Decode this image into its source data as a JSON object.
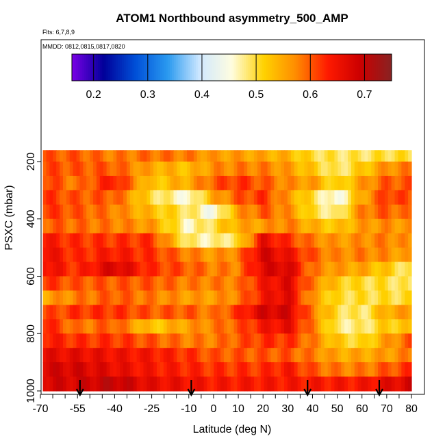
{
  "chart_data": {
    "type": "heatmap",
    "title": "ATOM1 Northbound asymmetry_500_AMP",
    "flights_note": "Flts: 6,7,8,9",
    "dates_note": "MMDD: 0812,0815,0817,0820",
    "xlabel": "Latitude (deg N)",
    "ylabel": "PSXC (mbar)",
    "xlim": [
      -70,
      80
    ],
    "ylim": [
      1000,
      140
    ],
    "x_ticks": [
      -70,
      -55,
      -40,
      -25,
      -10,
      0,
      10,
      20,
      30,
      40,
      50,
      60,
      70,
      80
    ],
    "y_ticks": [
      200,
      400,
      600,
      800,
      1000
    ],
    "colorbar": {
      "range": [
        0.16,
        0.75
      ],
      "ticks": [
        0.2,
        0.3,
        0.4,
        0.5,
        0.6,
        0.7
      ],
      "colors": [
        "#7a00e6",
        "#000099",
        "#0050d8",
        "#2a9af0",
        "#cfe8ff",
        "#fffde0",
        "#ffd200",
        "#ff8c00",
        "#ff1a00",
        "#cc0000",
        "#882222"
      ]
    },
    "data_extent": {
      "lat_min": -69,
      "lat_max": 80,
      "p_min": 160,
      "p_max": 1000
    },
    "flight_arrows_lat": [
      -54,
      -9,
      38,
      67
    ],
    "pressure_levels": [
      175,
      225,
      275,
      325,
      375,
      425,
      475,
      525,
      575,
      625,
      675,
      725,
      775,
      825,
      875,
      925,
      975
    ],
    "lat_nodes": [
      -70,
      -55,
      -40,
      -25,
      -10,
      0,
      10,
      20,
      30,
      40,
      50,
      60,
      70,
      80
    ],
    "values": [
      [
        0.6,
        0.6,
        0.58,
        0.59,
        0.58,
        0.56,
        0.56,
        0.55,
        0.54,
        0.5,
        0.49,
        0.49,
        0.5,
        0.5
      ],
      [
        0.61,
        0.6,
        0.6,
        0.55,
        0.53,
        0.57,
        0.58,
        0.58,
        0.56,
        0.52,
        0.48,
        0.52,
        0.57,
        0.58
      ],
      [
        0.62,
        0.58,
        0.64,
        0.52,
        0.55,
        0.6,
        0.62,
        0.6,
        0.57,
        0.56,
        0.5,
        0.56,
        0.6,
        0.6
      ],
      [
        0.62,
        0.6,
        0.6,
        0.5,
        0.45,
        0.55,
        0.6,
        0.62,
        0.56,
        0.5,
        0.44,
        0.55,
        0.62,
        0.6
      ],
      [
        0.62,
        0.6,
        0.58,
        0.53,
        0.49,
        0.44,
        0.56,
        0.6,
        0.57,
        0.5,
        0.47,
        0.58,
        0.6,
        0.58
      ],
      [
        0.6,
        0.59,
        0.58,
        0.56,
        0.46,
        0.5,
        0.55,
        0.56,
        0.58,
        0.54,
        0.52,
        0.56,
        0.57,
        0.56
      ],
      [
        0.64,
        0.62,
        0.62,
        0.62,
        0.48,
        0.47,
        0.5,
        0.66,
        0.62,
        0.58,
        0.56,
        0.57,
        0.58,
        0.56
      ],
      [
        0.66,
        0.62,
        0.64,
        0.62,
        0.58,
        0.56,
        0.58,
        0.68,
        0.65,
        0.6,
        0.57,
        0.58,
        0.57,
        0.55
      ],
      [
        0.66,
        0.62,
        0.68,
        0.62,
        0.6,
        0.58,
        0.58,
        0.67,
        0.68,
        0.58,
        0.56,
        0.55,
        0.52,
        0.48
      ],
      [
        0.62,
        0.6,
        0.6,
        0.6,
        0.58,
        0.58,
        0.58,
        0.64,
        0.67,
        0.58,
        0.52,
        0.5,
        0.5,
        0.48
      ],
      [
        0.55,
        0.58,
        0.6,
        0.58,
        0.56,
        0.56,
        0.58,
        0.64,
        0.67,
        0.56,
        0.5,
        0.5,
        0.5,
        0.5
      ],
      [
        0.6,
        0.62,
        0.62,
        0.6,
        0.6,
        0.58,
        0.62,
        0.68,
        0.68,
        0.58,
        0.5,
        0.48,
        0.55,
        0.56
      ],
      [
        0.64,
        0.58,
        0.6,
        0.52,
        0.56,
        0.58,
        0.6,
        0.64,
        0.66,
        0.58,
        0.48,
        0.48,
        0.52,
        0.52
      ],
      [
        0.64,
        0.62,
        0.62,
        0.6,
        0.58,
        0.58,
        0.6,
        0.62,
        0.62,
        0.58,
        0.52,
        0.5,
        0.56,
        0.6
      ],
      [
        0.66,
        0.66,
        0.65,
        0.64,
        0.62,
        0.6,
        0.6,
        0.6,
        0.6,
        0.58,
        0.55,
        0.55,
        0.56,
        0.58
      ],
      [
        0.68,
        0.68,
        0.66,
        0.64,
        0.63,
        0.62,
        0.62,
        0.62,
        0.64,
        0.6,
        0.58,
        0.58,
        0.6,
        0.62
      ],
      [
        0.68,
        0.68,
        0.7,
        0.66,
        0.65,
        0.64,
        0.64,
        0.64,
        0.64,
        0.64,
        0.64,
        0.64,
        0.66,
        0.68
      ]
    ]
  }
}
